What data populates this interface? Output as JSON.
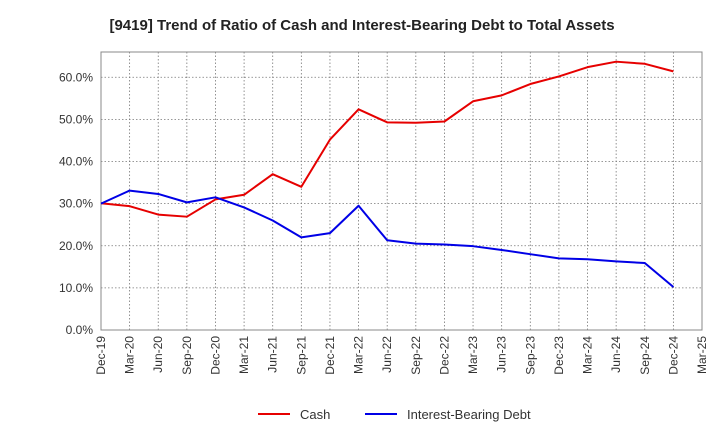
{
  "chart_data": {
    "type": "line",
    "title": "[9419]  Trend of Ratio of Cash and Interest-Bearing Debt to Total Assets",
    "xlabel": "",
    "ylabel": "",
    "categories": [
      "Dec-19",
      "Mar-20",
      "Jun-20",
      "Sep-20",
      "Dec-20",
      "Mar-21",
      "Jun-21",
      "Sep-21",
      "Dec-21",
      "Mar-22",
      "Jun-22",
      "Sep-22",
      "Dec-22",
      "Mar-23",
      "Jun-23",
      "Sep-23",
      "Dec-23",
      "Mar-24",
      "Jun-24",
      "Sep-24",
      "Dec-24",
      "Mar-25"
    ],
    "y_ticks": [
      "0.0%",
      "10.0%",
      "20.0%",
      "30.0%",
      "40.0%",
      "50.0%",
      "60.0%"
    ],
    "ylim": [
      0,
      66
    ],
    "grid": true,
    "legend_position": "bottom",
    "series": [
      {
        "name": "Cash",
        "color": "#e60000",
        "values": [
          30.1,
          29.4,
          27.4,
          26.9,
          31.0,
          32.1,
          37.0,
          34.0,
          45.2,
          52.4,
          49.3,
          49.2,
          49.5,
          54.3,
          55.7,
          58.4,
          60.2,
          62.4,
          63.7,
          63.2,
          61.4,
          null
        ]
      },
      {
        "name": "Interest-Bearing Debt",
        "color": "#0000e6",
        "values": [
          30.0,
          33.1,
          32.3,
          30.3,
          31.5,
          29.1,
          26.0,
          22.0,
          23.0,
          29.5,
          21.3,
          20.5,
          20.3,
          19.9,
          19.0,
          18.0,
          17.0,
          16.8,
          16.3,
          15.9,
          10.2,
          null
        ]
      }
    ]
  }
}
